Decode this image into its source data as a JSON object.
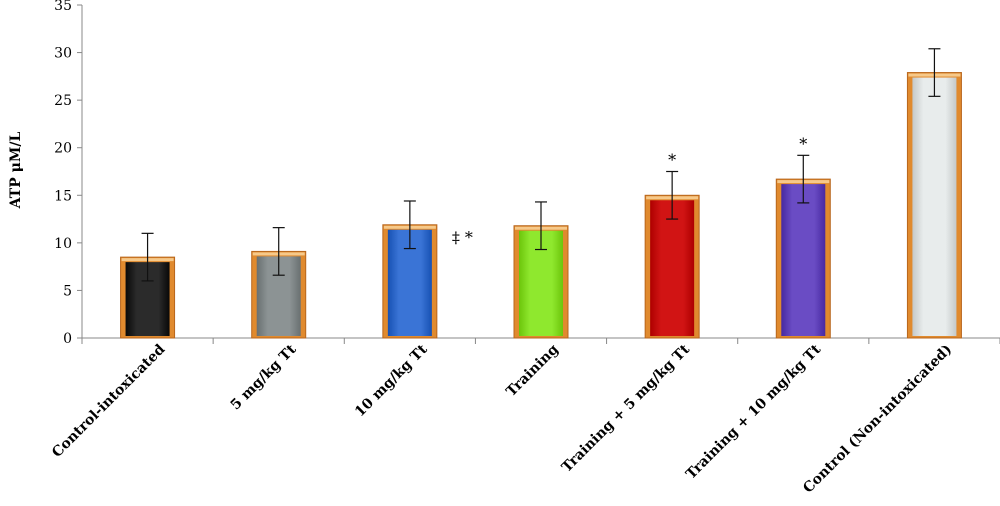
{
  "chart_data": {
    "type": "bar",
    "title": "",
    "xlabel": "",
    "ylabel": "ATP μM/L",
    "ylim": [
      0,
      35
    ],
    "yticks": [
      0,
      5,
      10,
      15,
      20,
      25,
      30,
      35
    ],
    "grid": false,
    "legend": "none",
    "categories": [
      "Control-intoxicated",
      "5 mg/kg Tt",
      "10 mg/kg Tt",
      "Training",
      "Training + 5 mg/kg Tt",
      "Training + 10 mg/kg Tt",
      "Control (Non-intoxicated)"
    ],
    "values": [
      8.5,
      9.1,
      11.9,
      11.8,
      15.0,
      16.7,
      27.9
    ],
    "errors": [
      2.5,
      2.5,
      2.5,
      2.5,
      2.5,
      2.5,
      2.5
    ],
    "annotations": [
      "",
      "",
      "‡ *",
      "",
      "*",
      "*",
      ""
    ],
    "colors": [
      "#2b2b2b",
      "#8c9394",
      "#3a74d6",
      "#8fe82e",
      "#d11414",
      "#6a4cc4",
      "#e8ecec"
    ],
    "border_color": "#e08a2e"
  }
}
